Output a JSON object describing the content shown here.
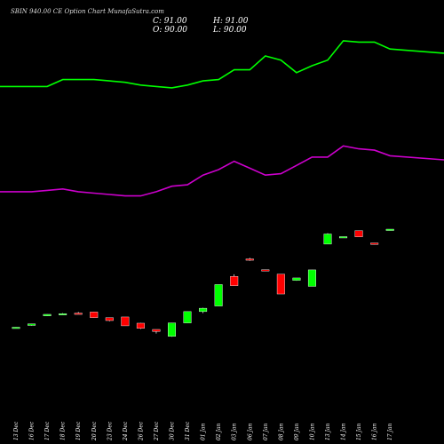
{
  "header": {
    "title": "SBIN 940.00 CE Option Chart MunafaSutra.com",
    "close_label": "C: 91.00",
    "high_label": "H: 91.00",
    "open_label": "O: 90.00",
    "low_label": "L: 90.00"
  },
  "chart_data": {
    "type": "candlestick",
    "title": "SBIN 940.00 CE Option Chart MunafaSutra.com",
    "categories": [
      "13 Dec",
      "16 Dec",
      "17 Dec",
      "18 Dec",
      "19 Dec",
      "20 Dec",
      "23 Dec",
      "24 Dec",
      "26 Dec",
      "27 Dec",
      "30 Dec",
      "31 Dec",
      "01 Jan",
      "02 Jan",
      "03 Jan",
      "06 Jan",
      "07 Jan",
      "08 Jan",
      "09 Jan",
      "10 Jan",
      "13 Jan",
      "14 Jan",
      "15 Jan",
      "16 Jan",
      "17 Jan"
    ],
    "display_x_labels": [
      "13 Dec",
      "16 Dec",
      "17 Dec",
      "18 Dec",
      "19 Dec",
      "20 Dec",
      "23 Dec",
      "24 Dec",
      "26 Dec",
      "27 Dec",
      "30 Dec",
      "31 Dec",
      "01 Jan",
      "02 Jan",
      "03 Jan",
      "06 Jan",
      "07 Jan",
      "08 Jan",
      "09 Jan",
      "10 Jan",
      "13 Jan",
      "14 Jan",
      "15 Jan",
      "16 Jan",
      "17 Jan"
    ],
    "ohlc": [
      {
        "o": 20.0,
        "h": 20.3,
        "l": 19.7,
        "c": 20.2
      },
      {
        "o": 21.5,
        "h": 22.6,
        "l": 21.3,
        "c": 22.6
      },
      {
        "o": 28.4,
        "h": 29.6,
        "l": 28.2,
        "c": 29.5
      },
      {
        "o": 29.7,
        "h": 30.4,
        "l": 29.3,
        "c": 30.0
      },
      {
        "o": 30.4,
        "h": 31.2,
        "l": 29.9,
        "c": 30.1
      },
      {
        "o": 31.2,
        "h": 31.2,
        "l": 27.0,
        "c": 27.1
      },
      {
        "o": 27.1,
        "h": 27.1,
        "l": 24.5,
        "c": 25.0
      },
      {
        "o": 27.6,
        "h": 27.6,
        "l": 21.2,
        "c": 21.2
      },
      {
        "o": 23.1,
        "h": 23.3,
        "l": 18.9,
        "c": 19.4
      },
      {
        "o": 18.6,
        "h": 18.6,
        "l": 15.6,
        "c": 17.1
      },
      {
        "o": 13.6,
        "h": 23.3,
        "l": 13.3,
        "c": 23.3
      },
      {
        "o": 23.3,
        "h": 31.5,
        "l": 23.3,
        "c": 31.5
      },
      {
        "o": 31.5,
        "h": 34.2,
        "l": 30.4,
        "c": 33.9
      },
      {
        "o": 35.5,
        "h": 51.0,
        "l": 35.5,
        "c": 51.0
      },
      {
        "o": 56.9,
        "h": 58.4,
        "l": 50.2,
        "c": 50.2
      },
      {
        "o": 69.5,
        "h": 70.3,
        "l": 68.1,
        "c": 68.6
      },
      {
        "o": 61.7,
        "h": 61.7,
        "l": 61.5,
        "c": 61.5
      },
      {
        "o": 58.5,
        "h": 58.5,
        "l": 44.2,
        "c": 44.2
      },
      {
        "o": 54.0,
        "h": 55.8,
        "l": 53.8,
        "c": 55.8
      },
      {
        "o": 49.7,
        "h": 61.6,
        "l": 49.7,
        "c": 61.6
      },
      {
        "o": 80.2,
        "h": 88.1,
        "l": 80.2,
        "c": 87.5
      },
      {
        "o": 85.0,
        "h": 85.6,
        "l": 84.8,
        "c": 85.6
      },
      {
        "o": 89.9,
        "h": 89.9,
        "l": 85.4,
        "c": 85.4
      },
      {
        "o": 81.0,
        "h": 81.0,
        "l": 80.0,
        "c": 80.0
      },
      {
        "o": 90.0,
        "h": 91.0,
        "l": 90.0,
        "c": 91.0
      }
    ],
    "upper_band": [
      194,
      194,
      194,
      199,
      199,
      199,
      198,
      197,
      195,
      194,
      193,
      195,
      198,
      199,
      206,
      206,
      216,
      213,
      204,
      209,
      213,
      227,
      226,
      226,
      221
    ],
    "lower_band": [
      118,
      118,
      119,
      120,
      118,
      117,
      116,
      115,
      115,
      118,
      122,
      123,
      130,
      134,
      140,
      135,
      130,
      131,
      137,
      143,
      143,
      151,
      149,
      148,
      144
    ],
    "band_colors": {
      "upper": "#00ff00",
      "lower": "#cc00cc"
    },
    "up_color": "#00ff00",
    "down_color": "#ff0000",
    "background": "#000000",
    "grid": false,
    "legend": "none",
    "ylabel": "",
    "xlabel": ""
  }
}
